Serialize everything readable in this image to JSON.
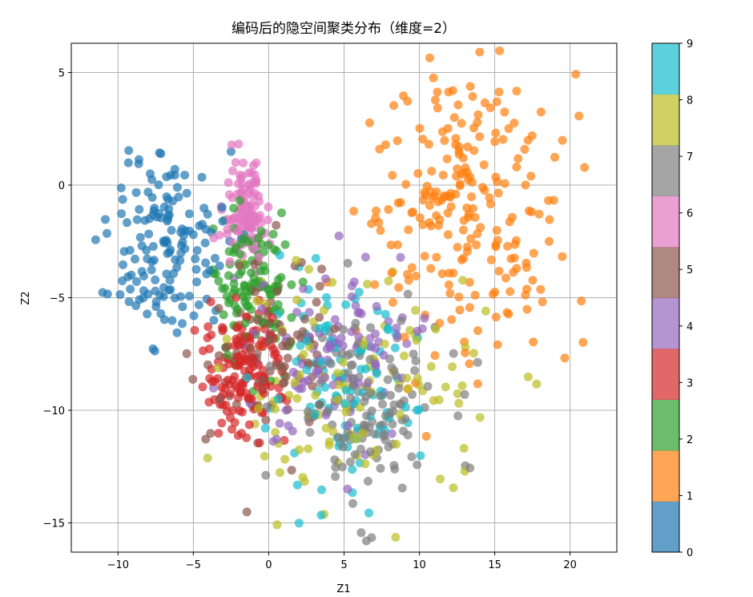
{
  "chart_data": {
    "type": "scatter",
    "title": "编码后的隐空间聚类分布（维度=2）",
    "xlabel": "Z1",
    "ylabel": "Z2",
    "xlim": [
      -13.1,
      23.1
    ],
    "ylim": [
      -16.3,
      6.3
    ],
    "xticks": [
      -10,
      -5,
      0,
      5,
      10,
      15,
      20
    ],
    "yticks": [
      5,
      0,
      -5,
      -10,
      -15
    ],
    "grid": true,
    "legend": "none",
    "colorbar": {
      "colormap": "tab10",
      "range": [
        0,
        9
      ],
      "ticks": [
        0,
        1,
        2,
        3,
        4,
        5,
        6,
        7,
        8,
        9
      ],
      "colors": [
        "#1f77b4",
        "#ff7f0e",
        "#2ca02c",
        "#d62728",
        "#9467bd",
        "#8c564b",
        "#e377c2",
        "#7f7f7f",
        "#bcbd22",
        "#17becf"
      ]
    },
    "marker_alpha": 0.7,
    "clusters": [
      {
        "class": 0,
        "center": [
          -6.8,
          -2.5
        ],
        "spread": [
          2.0,
          2.1
        ],
        "n": 150
      },
      {
        "class": 1,
        "center": [
          13.0,
          -1.0
        ],
        "spread": [
          3.3,
          3.4
        ],
        "n": 230
      },
      {
        "class": 2,
        "center": [
          -1.0,
          -4.5
        ],
        "spread": [
          1.4,
          1.6
        ],
        "n": 110
      },
      {
        "class": 3,
        "center": [
          -1.8,
          -8.3
        ],
        "spread": [
          1.4,
          1.4
        ],
        "n": 150
      },
      {
        "class": 4,
        "center": [
          4.5,
          -7.5
        ],
        "spread": [
          2.6,
          2.0
        ],
        "n": 100
      },
      {
        "class": 5,
        "center": [
          0.2,
          -7.0
        ],
        "spread": [
          2.0,
          2.0
        ],
        "n": 90
      },
      {
        "class": 6,
        "center": [
          -1.6,
          -1.2
        ],
        "spread": [
          0.7,
          1.1
        ],
        "n": 110
      },
      {
        "class": 7,
        "center": [
          6.3,
          -10.0
        ],
        "spread": [
          2.6,
          2.2
        ],
        "n": 130
      },
      {
        "class": 8,
        "center": [
          6.0,
          -9.0
        ],
        "spread": [
          4.5,
          2.5
        ],
        "n": 120
      },
      {
        "class": 9,
        "center": [
          4.6,
          -9.4
        ],
        "spread": [
          2.6,
          2.2
        ],
        "n": 100
      }
    ]
  }
}
